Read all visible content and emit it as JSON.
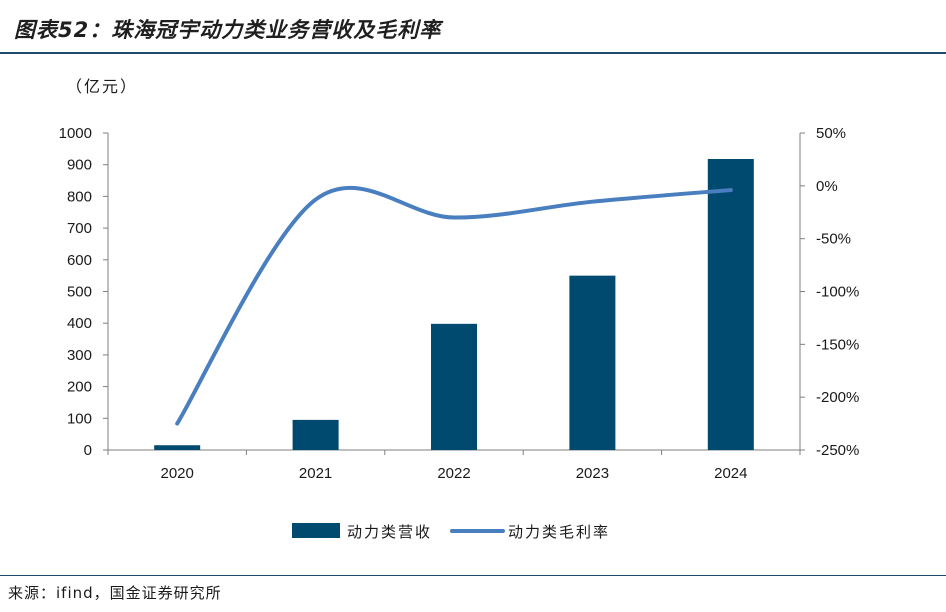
{
  "title": "图表52：珠海冠宇动力类业务营收及毛利率",
  "source": "来源：ifind，国金证券研究所",
  "chart_data": {
    "type": "bar+line",
    "categories": [
      "2020",
      "2021",
      "2022",
      "2023",
      "2024"
    ],
    "unit_label": "（亿元）",
    "series": [
      {
        "name": "动力类营收",
        "type": "bar",
        "axis": "left",
        "color": "#004a70",
        "values": [
          15,
          95,
          398,
          550,
          918
        ]
      },
      {
        "name": "动力类毛利率",
        "type": "line",
        "axis": "right",
        "color": "#4a7fbf",
        "values": [
          -225,
          -13,
          -30,
          -15,
          -4
        ]
      }
    ],
    "y_left": {
      "min": 0,
      "max": 1000,
      "step": 100,
      "ticks": [
        "0",
        "100",
        "200",
        "300",
        "400",
        "500",
        "600",
        "700",
        "800",
        "900",
        "1000"
      ]
    },
    "y_right": {
      "min": -250,
      "max": 50,
      "step": 50,
      "ticks": [
        "-250%",
        "-200%",
        "-150%",
        "-100%",
        "-50%",
        "0%",
        "50%"
      ]
    },
    "grid": false,
    "legend_position": "bottom"
  }
}
